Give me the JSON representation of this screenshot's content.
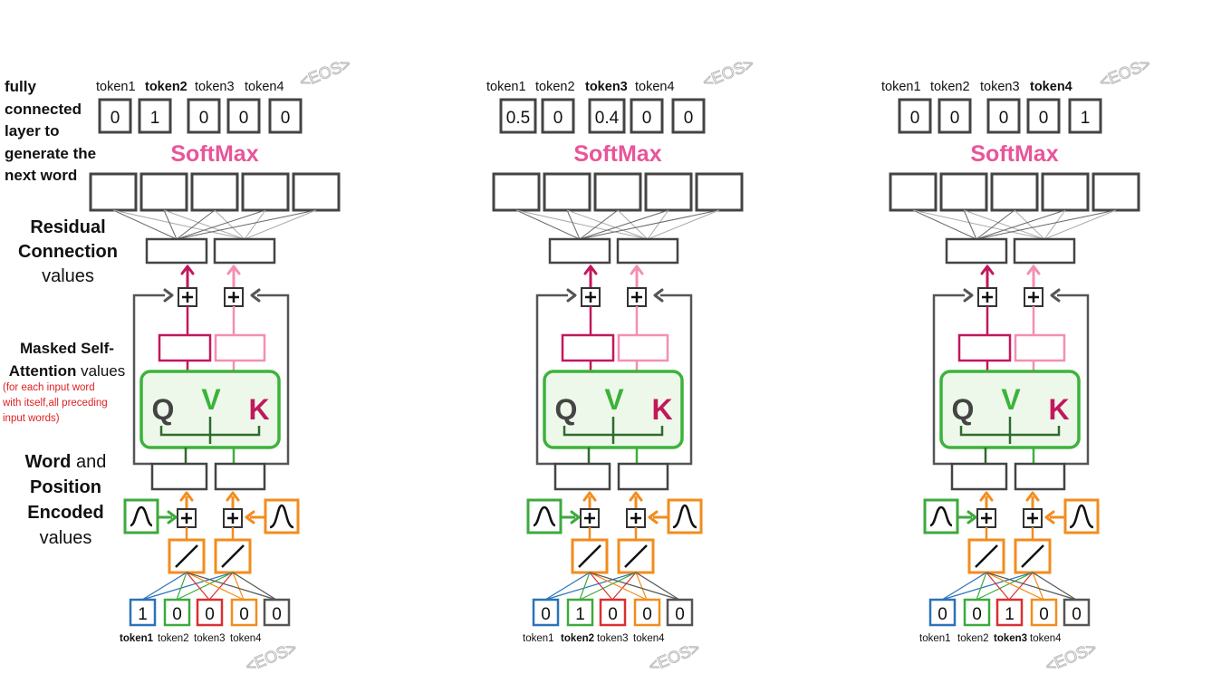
{
  "left_labels": {
    "fully_connected": [
      "fully",
      "connected",
      "layer to",
      "generate the",
      "next word"
    ],
    "residual_1": "Residual",
    "residual_2": "Connection",
    "residual_3": "values",
    "masked_1": "Masked",
    "masked_2": "Self-",
    "masked_3": "Attention",
    "masked_4": "values",
    "masked_note": [
      "(for each input word",
      "with itself,all preceding",
      "input words)"
    ],
    "word_1": "Word",
    "word_2": "and",
    "word_3": "Position",
    "word_4": "Encoded",
    "word_5": "values"
  },
  "softmax_label": "SoftMax",
  "eos_label": "<EOS>",
  "qvk": [
    "Q",
    "V",
    "K"
  ],
  "token_names": [
    "token1",
    "token2",
    "token3",
    "token4"
  ],
  "panels": [
    {
      "output_values": [
        "0",
        "1",
        "0",
        "0",
        "0"
      ],
      "output_bold_token": 1,
      "input_values": [
        "1",
        "0",
        "0",
        "0",
        "0"
      ],
      "input_bold_token": 0
    },
    {
      "output_values": [
        "0.5",
        "0",
        "0.4",
        "0",
        "0"
      ],
      "output_bold_token": 2,
      "input_values": [
        "0",
        "1",
        "0",
        "0",
        "0"
      ],
      "input_bold_token": 1
    },
    {
      "output_values": [
        "0",
        "0",
        "0",
        "0",
        "1"
      ],
      "output_bold_token": 3,
      "input_values": [
        "0",
        "0",
        "1",
        "0",
        "0"
      ],
      "input_bold_token": 2
    }
  ],
  "colors": {
    "box": "#444444",
    "softmax": "#e8559a",
    "attention_green": "#3bb33b",
    "attention_fill": "#eef8ea",
    "crimson": "#c2185b",
    "pink": "#f48fb1",
    "orange": "#f28c1e",
    "input_blue": "#2a73b8",
    "input_green": "#3daa3d",
    "input_red": "#d93030",
    "input_orange": "#f28c1e",
    "input_gray": "#555555",
    "dark_green": "#2e6b2e",
    "note_red": "#e02020"
  }
}
